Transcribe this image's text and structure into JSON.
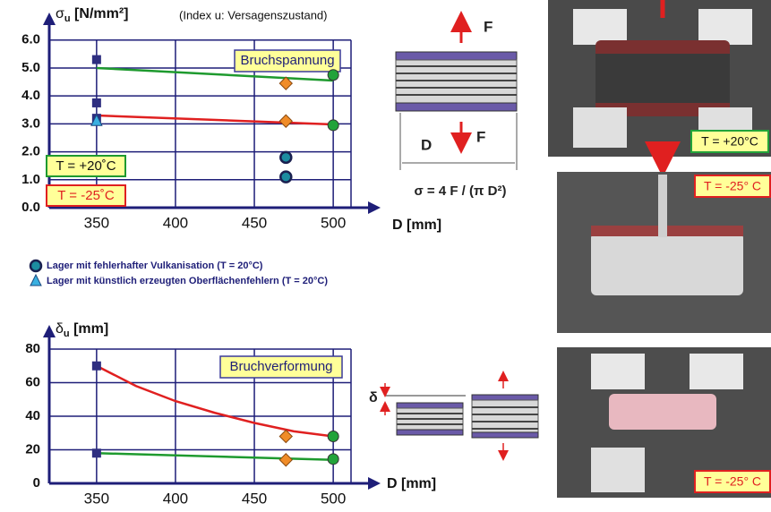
{
  "chart_data": [
    {
      "type": "scatter",
      "ylabel": "σ",
      "ylabel_sub": "u",
      "ylabel_unit": " [N/mm²]",
      "note": "(Index u: Versagenszustand)",
      "xlabel": "D [mm]",
      "box_label": "Bruchspannung",
      "xlim": [
        320,
        530
      ],
      "ylim": [
        0,
        6.6
      ],
      "xticks": [
        350,
        400,
        450,
        500
      ],
      "yticks": [
        {
          "value": 0,
          "label": "0.0"
        },
        {
          "value": 1,
          "label": "1.0"
        },
        {
          "value": 2,
          "label": "2.0"
        },
        {
          "value": 3,
          "label": "3.0"
        },
        {
          "value": 4,
          "label": "4.0"
        },
        {
          "value": 5,
          "label": "5.0"
        },
        {
          "value": 6,
          "label": "6.0"
        }
      ],
      "grid": true,
      "series": [
        {
          "marker": "line",
          "color": "#1e9a2e",
          "label": "T = +20˚C",
          "x": [
            350,
            500
          ],
          "values": [
            5.0,
            4.55
          ]
        },
        {
          "marker": "line",
          "color": "#e02020",
          "label": "T = -25˚C",
          "x": [
            350,
            500
          ],
          "values": [
            3.3,
            2.98
          ]
        },
        {
          "marker": "square",
          "color": "#2e2e80",
          "x": [
            350,
            350,
            350
          ],
          "values": [
            5.3,
            3.75,
            3.2
          ]
        },
        {
          "marker": "circle",
          "color": "#1c8ca0",
          "name": "Lager mit fehlerhafter Vulkanisation (T = 20°C)",
          "x": [
            470,
            470
          ],
          "values": [
            1.8,
            1.1
          ]
        },
        {
          "marker": "triangle",
          "color": "#3ab0e0",
          "name": "Lager mit künstlich erzeugten Oberflächenfehlern (T = 20°C)",
          "x": [
            350
          ],
          "values": [
            3.1
          ]
        },
        {
          "marker": "diamond",
          "color": "#f08c28",
          "x": [
            470,
            470
          ],
          "values": [
            4.45,
            3.1
          ]
        },
        {
          "marker": "circle",
          "color": "#22a33a",
          "x": [
            500,
            500
          ],
          "values": [
            4.75,
            2.95
          ]
        }
      ]
    },
    {
      "type": "scatter",
      "ylabel": "δ",
      "ylabel_sub": "u",
      "ylabel_unit": " [mm]",
      "xlabel": "D [mm]",
      "box_label": "Bruchverformung",
      "xlim": [
        320,
        530
      ],
      "ylim": [
        0,
        88
      ],
      "xticks": [
        350,
        400,
        450,
        500
      ],
      "yticks": [
        0,
        20,
        40,
        60,
        80
      ],
      "grid": true,
      "series": [
        {
          "marker": "line",
          "color": "#e02020",
          "x": [
            350,
            375,
            400,
            425,
            450,
            475,
            500
          ],
          "values": [
            70,
            58,
            49,
            42,
            36,
            31,
            28
          ]
        },
        {
          "marker": "line",
          "color": "#1e9a2e",
          "x": [
            350,
            500
          ],
          "values": [
            18,
            14
          ]
        },
        {
          "marker": "square",
          "color": "#2e2e80",
          "x": [
            350,
            350
          ],
          "values": [
            70,
            18
          ]
        },
        {
          "marker": "diamond",
          "color": "#f08c28",
          "x": [
            470,
            470
          ],
          "values": [
            28,
            14
          ]
        },
        {
          "marker": "circle",
          "color": "#22a33a",
          "x": [
            500,
            500
          ],
          "values": [
            28,
            14.5
          ]
        }
      ]
    }
  ],
  "diagram": {
    "force_top": "F",
    "force_bottom": "F",
    "diameter": "D",
    "formula": "σ = 4 F / (π D²)",
    "deformation": "δ"
  },
  "photos": [
    {
      "label": "T = +20°C"
    },
    {
      "label": "T = -25° C"
    },
    {
      "label": "T = -25° C"
    }
  ]
}
